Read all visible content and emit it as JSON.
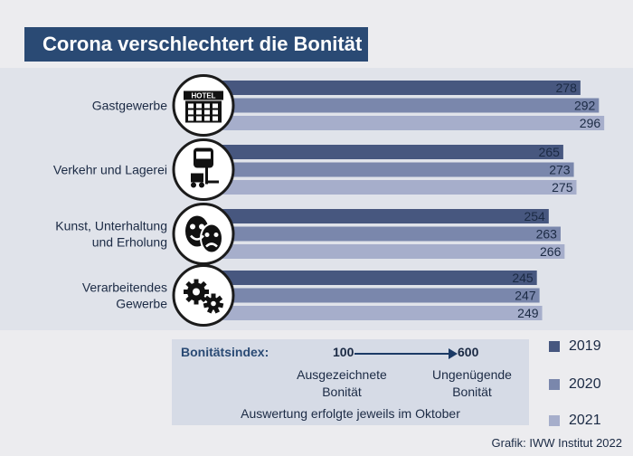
{
  "title": "Corona verschlechtert die Bonität",
  "colors": {
    "2019": "#47577f",
    "2020": "#7a87ac",
    "2021": "#a6aecb"
  },
  "chart_data": {
    "type": "bar",
    "orientation": "horizontal",
    "categories": [
      "Gastgewerbe",
      "Verkehr und Lagerei",
      "Kunst, Unterhaltung und Erholung",
      "Verarbeitendes Gewerbe"
    ],
    "category_icons": [
      "hotel-icon",
      "bus-forklift-icon",
      "theater-masks-icon",
      "gears-icon"
    ],
    "series": [
      {
        "name": "2019",
        "values": [
          278,
          265,
          254,
          245
        ]
      },
      {
        "name": "2020",
        "values": [
          292,
          273,
          263,
          247
        ]
      },
      {
        "name": "2021",
        "values": [
          296,
          275,
          266,
          249
        ]
      }
    ],
    "xlim": [
      0,
      300
    ],
    "legend_position": "bottom-right"
  },
  "index": {
    "label": "Bonitätsindex:",
    "start": "100",
    "end": "600",
    "start_desc_line1": "Ausgezeichnete",
    "start_desc_line2": "Bonität",
    "end_desc_line1": "Ungenügende",
    "end_desc_line2": "Bonität",
    "note": "Auswertung erfolgte jeweils im Oktober"
  },
  "legend": [
    "2019",
    "2020",
    "2021"
  ],
  "source": "Grafik: IWW Institut 2022"
}
